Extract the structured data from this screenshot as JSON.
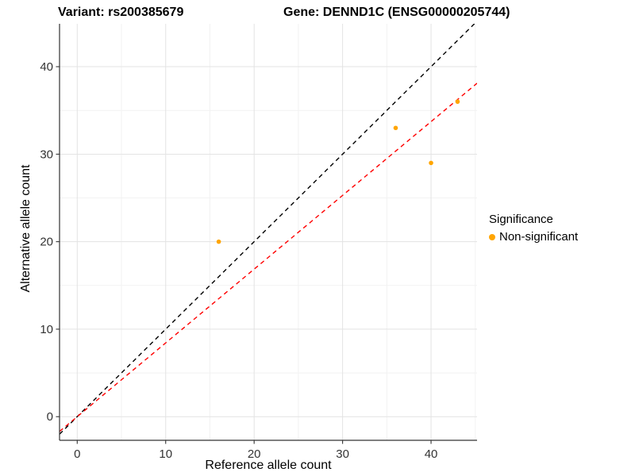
{
  "chart_data": {
    "type": "scatter",
    "titles": {
      "variant": "Variant: rs200385679",
      "gene": "Gene: DENND1C (ENSG00000205744)"
    },
    "xlabel": "Reference allele count",
    "ylabel": "Alternative allele count",
    "xlim": [
      -2,
      45.2
    ],
    "ylim": [
      -2.7,
      44.9
    ],
    "x_ticks": [
      0,
      10,
      20,
      30,
      40
    ],
    "y_ticks": [
      0,
      10,
      20,
      30,
      40
    ],
    "x_minor_ticks": [
      5,
      15,
      25,
      35,
      45
    ],
    "y_minor_ticks": [
      5,
      15,
      25,
      35
    ],
    "grid": true,
    "points": [
      {
        "x": 16,
        "y": 20
      },
      {
        "x": 36,
        "y": 33
      },
      {
        "x": 40,
        "y": 29
      },
      {
        "x": 43,
        "y": 36
      }
    ],
    "lines": [
      {
        "name": "identity-line",
        "slope": 1,
        "intercept": 0,
        "color": "#000000",
        "dashed": true
      },
      {
        "name": "fit-line",
        "slope": 0.843,
        "intercept": 0,
        "color": "#FF0000",
        "dashed": true
      }
    ],
    "point_color": "#FFA500",
    "legend": {
      "position": "right",
      "title": "Significance",
      "items": [
        {
          "label": "Non-significant",
          "color": "#FFA500"
        }
      ]
    },
    "colors": {
      "grid_major": "#E3E3E3",
      "grid_minor": "#F2F2F2",
      "axis": "#333333",
      "tick_label": "#333333"
    }
  }
}
